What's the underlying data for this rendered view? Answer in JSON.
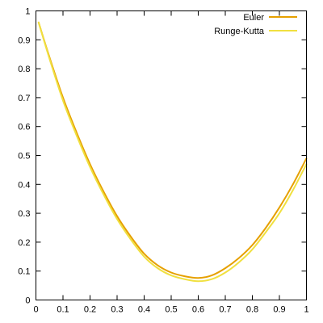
{
  "chart_data": {
    "type": "line",
    "title": "",
    "xlabel": "",
    "ylabel": "",
    "xlim": [
      0,
      1
    ],
    "ylim": [
      0,
      1
    ],
    "grid": false,
    "legend_position": "top-right",
    "x_ticks": [
      "0",
      "0.1",
      "0.2",
      "0.3",
      "0.4",
      "0.5",
      "0.6",
      "0.7",
      "0.8",
      "0.9",
      "1"
    ],
    "y_ticks": [
      "0",
      "0.1",
      "0.2",
      "0.3",
      "0.4",
      "0.5",
      "0.6",
      "0.7",
      "0.8",
      "0.9",
      "1"
    ],
    "x": [
      0.01,
      0.05,
      0.1,
      0.15,
      0.2,
      0.25,
      0.3,
      0.35,
      0.4,
      0.45,
      0.5,
      0.55,
      0.6,
      0.65,
      0.7,
      0.75,
      0.8,
      0.85,
      0.9,
      0.95,
      1.0
    ],
    "series": [
      {
        "name": "Euler",
        "color": "#e6a000",
        "values": [
          0.96,
          0.84,
          0.7,
          0.58,
          0.47,
          0.375,
          0.29,
          0.22,
          0.16,
          0.12,
          0.095,
          0.082,
          0.076,
          0.085,
          0.11,
          0.145,
          0.19,
          0.25,
          0.32,
          0.4,
          0.49
        ]
      },
      {
        "name": "Runge-Kutta",
        "color": "#f0e040",
        "values": [
          0.96,
          0.835,
          0.69,
          0.57,
          0.46,
          0.365,
          0.28,
          0.21,
          0.15,
          0.11,
          0.085,
          0.072,
          0.065,
          0.072,
          0.095,
          0.13,
          0.175,
          0.235,
          0.3,
          0.38,
          0.47
        ]
      }
    ]
  }
}
